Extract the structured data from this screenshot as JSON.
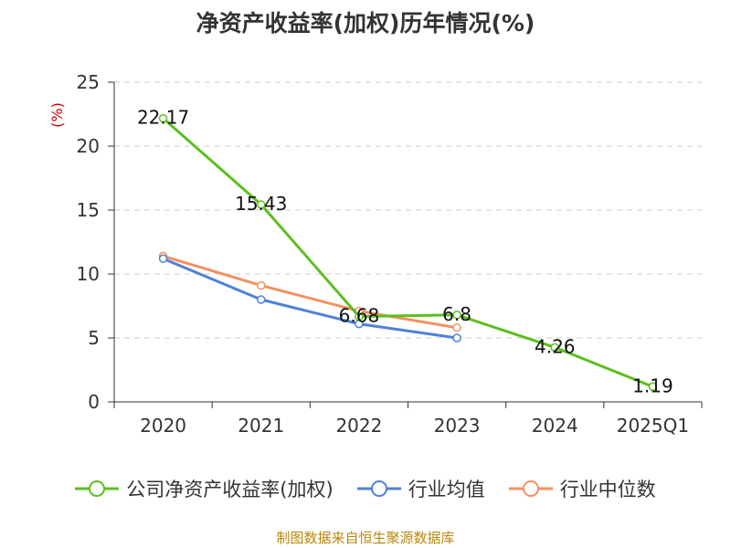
{
  "chart_data": {
    "type": "line",
    "title": "净资产收益率(加权)历年情况(%)",
    "ylabel": "(%)",
    "xlabel": "",
    "categories": [
      "2020",
      "2021",
      "2022",
      "2023",
      "2024",
      "2025Q1"
    ],
    "ylim": [
      0,
      25
    ],
    "yticks": [
      0,
      5,
      10,
      15,
      20,
      25
    ],
    "grid": true,
    "legend_position": "bottom",
    "series": [
      {
        "name": "公司净资产收益率(加权)",
        "values": [
          22.17,
          15.43,
          6.68,
          6.8,
          4.26,
          1.19
        ],
        "labels": [
          "22.17",
          "15.43",
          "6.68",
          "6.8",
          "4.26",
          "1.19"
        ],
        "color": "#5cbf1e"
      },
      {
        "name": "行业均值",
        "values": [
          11.2,
          8.0,
          6.1,
          5.0,
          null,
          null
        ],
        "color": "#4f81d6"
      },
      {
        "name": "行业中位数",
        "values": [
          11.4,
          9.1,
          7.1,
          5.8,
          null,
          null
        ],
        "color": "#f39060"
      }
    ]
  },
  "source": "制图数据来自恒生聚源数据库"
}
